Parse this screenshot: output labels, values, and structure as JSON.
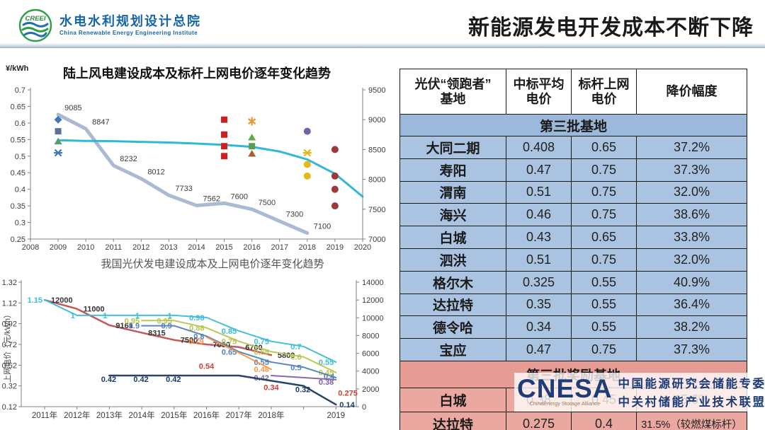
{
  "header": {
    "logo_text": "CREEI",
    "org_cn": "水电水利规划设计总院",
    "org_en": "China Renewable Energy Engineering Institute",
    "title": "新能源发电开发成本不断下降"
  },
  "table": {
    "headers": [
      "光伏“领跑者”\n基地",
      "中标平均\n电价",
      "标杆上网\n电价",
      "降价幅度"
    ],
    "sections": [
      {
        "band": "第三批基地",
        "theme": "blue",
        "rows": [
          [
            "大同二期",
            "0.408",
            "0.65",
            "37.2%"
          ],
          [
            "寿阳",
            "0.47",
            "0.75",
            "37.3%"
          ],
          [
            "渭南",
            "0.51",
            "0.75",
            "32.0%"
          ],
          [
            "海兴",
            "0.46",
            "0.75",
            "38.6%"
          ],
          [
            "白城",
            "0.43",
            "0.65",
            "33.8%"
          ],
          [
            "泗洪",
            "0.51",
            "0.75",
            "32.0%"
          ],
          [
            "格尔木",
            "0.325",
            "0.55",
            "40.9%"
          ],
          [
            "达拉特",
            "0.35",
            "0.55",
            "36.4%"
          ],
          [
            "德令哈",
            "0.34",
            "0.55",
            "38.2%"
          ],
          [
            "宝应",
            "0.47",
            "0.75",
            "37.3%"
          ]
        ]
      },
      {
        "band": "第三批奖励基地",
        "theme": "pink",
        "rows": [
          [
            "白城",
            "0.38",
            "0.45",
            "15.6%"
          ],
          [
            "达拉特",
            "0.275",
            "0.4",
            "31.5%（较燃煤标杆）"
          ]
        ]
      }
    ]
  },
  "watermark": {
    "logo": "CNESA",
    "logo_sub": "ChinaEnergy Storage Alliance",
    "line1": "中国能源研究会储能专委会",
    "line2": "中关村储能产业技术联盟"
  },
  "chart_data": [
    {
      "type": "line+scatter",
      "title": "陆上风电建设成本及标杆上网电价逐年变化趋势",
      "y_left": {
        "label": "¥/kWh",
        "min": 0.25,
        "max": 0.7,
        "ticks": [
          0.7,
          0.65,
          0.6,
          0.55,
          0.5,
          0.45,
          0.4,
          0.35,
          0.3,
          0.25
        ]
      },
      "y_right": {
        "min": 7000,
        "max": 9500,
        "ticks": [
          9500,
          9000,
          8500,
          8000,
          7500,
          7000
        ]
      },
      "x_ticks": [
        2008,
        2009,
        2010,
        2011,
        2012,
        2013,
        2014,
        2015,
        2016,
        2017,
        2018,
        2019,
        2020
      ],
      "series": [
        {
          "id": "construction-cost",
          "axis": "right",
          "color": "#a4b6d0",
          "width": 5,
          "labels": true,
          "points": [
            [
              2009,
              9085
            ],
            [
              2010,
              8847
            ],
            [
              2011,
              8232
            ],
            [
              2012,
              8012
            ],
            [
              2013,
              7733
            ],
            [
              2014,
              7562
            ],
            [
              2015,
              7600
            ],
            [
              2016,
              7500
            ],
            [
              2017,
              7300
            ],
            [
              2018,
              7100
            ]
          ]
        },
        {
          "id": "benchmark-price-curve",
          "axis": "left",
          "color": "#26b3d7",
          "width": 3,
          "labels": false,
          "points": [
            [
              2009,
              0.548
            ],
            [
              2010,
              0.546
            ],
            [
              2011,
              0.545
            ],
            [
              2012,
              0.543
            ],
            [
              2013,
              0.541
            ],
            [
              2014,
              0.538
            ],
            [
              2015,
              0.534
            ],
            [
              2016,
              0.528
            ],
            [
              2017,
              0.514
            ],
            [
              2018,
              0.49
            ],
            [
              2019,
              0.447
            ],
            [
              2020,
              0.378
            ]
          ]
        }
      ],
      "scatter": [
        {
          "year": 2009,
          "value": 0.61,
          "shape": "diamond",
          "color": "#4576b5"
        },
        {
          "year": 2009,
          "value": 0.575,
          "shape": "square",
          "color": "#5c6f9e"
        },
        {
          "year": 2009,
          "value": 0.545,
          "shape": "triangle",
          "color": "#4f9e6b"
        },
        {
          "year": 2009,
          "value": 0.51,
          "shape": "x",
          "color": "#4576b5"
        },
        {
          "year": 2015,
          "value": 0.61,
          "shape": "square",
          "color": "#cc2020"
        },
        {
          "year": 2015,
          "value": 0.565,
          "shape": "square",
          "color": "#cc2020"
        },
        {
          "year": 2015,
          "value": 0.53,
          "shape": "square",
          "color": "#cc2020"
        },
        {
          "year": 2015,
          "value": 0.5,
          "shape": "square",
          "color": "#cc2020"
        },
        {
          "year": 2016,
          "value": 0.605,
          "shape": "star",
          "color": "#e09c3c"
        },
        {
          "year": 2016,
          "value": 0.557,
          "shape": "triangle",
          "color": "#5faa46"
        },
        {
          "year": 2016,
          "value": 0.53,
          "shape": "square",
          "color": "#55a050"
        },
        {
          "year": 2016,
          "value": 0.508,
          "shape": "triangle",
          "color": "#a65e2e"
        },
        {
          "year": 2018,
          "value": 0.575,
          "shape": "circle",
          "color": "#7064a8"
        },
        {
          "year": 2018,
          "value": 0.51,
          "shape": "x",
          "color": "#e6b817"
        },
        {
          "year": 2018,
          "value": 0.475,
          "shape": "circle",
          "color": "#e6b817"
        },
        {
          "year": 2018,
          "value": 0.44,
          "shape": "circle",
          "color": "#e6b817"
        },
        {
          "year": 2019,
          "value": 0.52,
          "shape": "circle",
          "color": "#9c3a3a"
        },
        {
          "year": 2019,
          "value": 0.44,
          "shape": "circle",
          "color": "#9c3a3a"
        },
        {
          "year": 2019,
          "value": 0.4,
          "shape": "circle",
          "color": "#9c3a3a"
        },
        {
          "year": 2019,
          "value": 0.35,
          "shape": "circle",
          "color": "#9c3a3a"
        }
      ]
    },
    {
      "type": "line",
      "title": "我国光伏发电建设成本及上网电价逐年变化趋势",
      "y_left": {
        "label": "上网电价（元/kWh）",
        "min": 0.12,
        "max": 1.32,
        "ticks": [
          1.32,
          1.12,
          0.92,
          0.72,
          0.52,
          0.32,
          0.12
        ]
      },
      "y_right": {
        "min": 0,
        "max": 14000,
        "ticks": [
          14000,
          12000,
          10000,
          8000,
          6000,
          4000,
          2000,
          0
        ]
      },
      "x_tick_labels": [
        "2011年",
        "2012年",
        "2013年",
        "2014年",
        "2015年",
        "2016年",
        "2017年",
        "2018年",
        "2019"
      ],
      "series": [
        {
          "id": "pv-construction-cost",
          "axis": "right",
          "color": "#c0504d",
          "width": 2.5,
          "points": [
            [
              2011,
              12000,
              1
            ],
            [
              2012,
              11000,
              1
            ],
            [
              2013,
              9161,
              1
            ],
            [
              2014,
              8315,
              1
            ],
            [
              2015,
              7500,
              1
            ],
            [
              2016,
              7000,
              1
            ],
            [
              2017,
              6700,
              1
            ],
            [
              2018,
              5800,
              1
            ]
          ]
        },
        {
          "id": "price-line-cyan",
          "axis": "left",
          "color": "#3bbcd9",
          "width": 2,
          "points": [
            [
              2011,
              1.15,
              1
            ],
            [
              2012,
              1,
              1
            ],
            [
              2013,
              1,
              1
            ],
            [
              2014,
              1,
              1
            ],
            [
              2015,
              1,
              1
            ],
            [
              2016,
              0.98,
              1
            ],
            [
              2017,
              0.85,
              1
            ],
            [
              2018,
              0.75,
              1
            ],
            [
              2018.5,
              0.7,
              1
            ],
            [
              2019,
              0.55,
              1
            ]
          ]
        },
        {
          "id": "price-line-yellowgreen",
          "axis": "left",
          "color": "#b8c64f",
          "width": 2,
          "points": [
            [
              2014,
              0.95,
              1
            ],
            [
              2015,
              0.95,
              1
            ],
            [
              2016,
              0.88,
              1
            ],
            [
              2017,
              0.75,
              1
            ],
            [
              2018,
              0.65,
              1
            ],
            [
              2018.5,
              0.6,
              1
            ],
            [
              2019,
              0.45,
              1
            ]
          ]
        },
        {
          "id": "price-line-blue",
          "axis": "left",
          "color": "#4f81bd",
          "width": 2,
          "points": [
            [
              2014,
              0.9,
              1
            ],
            [
              2015,
              0.9,
              1
            ],
            [
              2016,
              0.8,
              1
            ],
            [
              2017,
              0.65,
              1
            ],
            [
              2018,
              0.55,
              1
            ],
            [
              2018.5,
              0.5,
              1
            ],
            [
              2019,
              0.4,
              1
            ]
          ]
        },
        {
          "id": "price-line-orange",
          "axis": "left",
          "color": "#f79646",
          "width": 2,
          "points": [
            [
              2016,
              0.79,
              1
            ],
            [
              2017,
              0.64,
              0
            ],
            [
              2018,
              0.48,
              1
            ]
          ]
        },
        {
          "id": "price-line-purple",
          "axis": "left",
          "color": "#8064a2",
          "width": 2,
          "points": [
            [
              2018,
              0.42,
              1
            ],
            [
              2019,
              0.38,
              1
            ]
          ]
        },
        {
          "id": "price-line-navy",
          "axis": "left",
          "color": "#1d3a63",
          "width": 2.5,
          "points": [
            [
              2013,
              0.42,
              1
            ],
            [
              2014,
              0.42,
              1
            ],
            [
              2015,
              0.42,
              1
            ],
            [
              2016,
              0.42,
              0
            ],
            [
              2017,
              0.42,
              0
            ],
            [
              2018,
              0.37,
              0
            ],
            [
              2018.5,
              0.32,
              1
            ],
            [
              2019,
              0.14,
              1
            ]
          ]
        }
      ],
      "annotations": [
        {
          "x": 2016,
          "y": 0.54,
          "text": "0.54",
          "color": "#cf3e36"
        },
        {
          "x": 2018,
          "y": 0.34,
          "text": "0.34",
          "color": "#cf3e36"
        },
        {
          "x": 2019,
          "y": 0.275,
          "text": "0.275",
          "color": "#cf3e36"
        }
      ]
    }
  ]
}
